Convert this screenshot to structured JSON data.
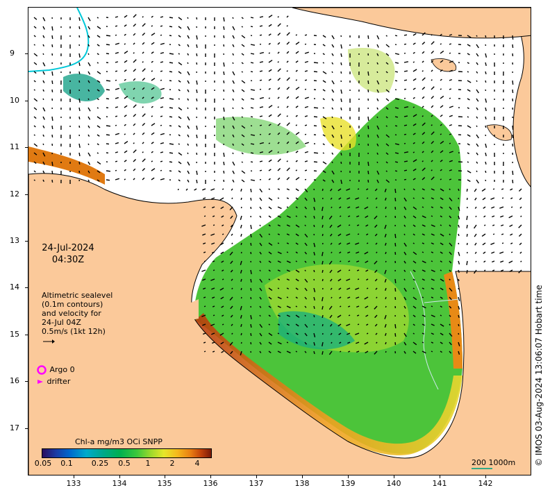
{
  "map": {
    "date": "24-Jul-2024",
    "time": "04:30Z",
    "altimetry_lines": [
      "Altimetric sealevel",
      "(0.1m contours)",
      "and velocity for",
      "24-Jul 04Z",
      "0.5m/s (1kt 12h)"
    ],
    "legend": {
      "argo_label": "Argo 0",
      "drifter_label": "drifter",
      "argo_color": "#ff00ff",
      "drifter_color": "#ff00ff"
    },
    "colorbar": {
      "title": "Chl-a mg/m3 OCi SNPP",
      "ticks": [
        "0.05",
        "0.1",
        "0.25",
        "0.5",
        "1",
        "2",
        "4"
      ]
    },
    "scale_bar": "200  1000m",
    "credit": "© IMOS 03-Aug-2024 13:06:07 Hobart time",
    "y_ticks": [
      "9",
      "10",
      "11",
      "12",
      "13",
      "14",
      "15",
      "16",
      "17"
    ],
    "x_ticks": [
      "133",
      "134",
      "135",
      "136",
      "137",
      "138",
      "139",
      "140",
      "141",
      "142"
    ],
    "colors": {
      "land": "#fbc99a",
      "coast": "#000000",
      "chl_low": "#00a88a",
      "chl_mid": "#3cc83c",
      "chl_high": "#e87d12",
      "chl_max": "#a02a08"
    }
  }
}
